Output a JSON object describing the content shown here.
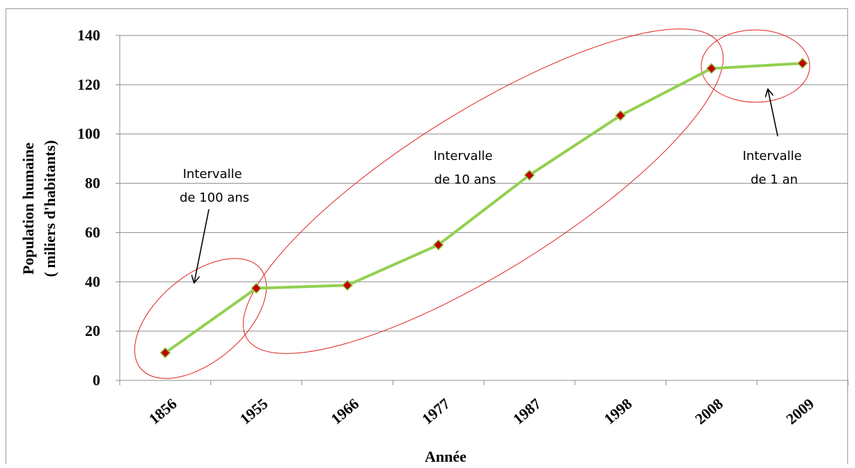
{
  "chart_data": {
    "type": "line",
    "title": "",
    "xlabel": "Année",
    "ylabel": [
      "Population humaine",
      "( miliers d'habitants)"
    ],
    "categories": [
      "1856",
      "1955",
      "1966",
      "1977",
      "1987",
      "1998",
      "2008",
      "2009"
    ],
    "series": [
      {
        "values": [
          11.2,
          37.4,
          38.6,
          55.0,
          83.3,
          107.5,
          126.6,
          128.7
        ]
      }
    ],
    "ylim": [
      0,
      140
    ],
    "yticks": [
      0,
      20,
      40,
      60,
      80,
      100,
      120,
      140
    ],
    "grid": true,
    "line_color": "#92d050",
    "marker_color": "#c00000",
    "annotation_color": "#e02020",
    "annotations": [
      {
        "lines": [
          "Intervalle",
          "de 100 ans"
        ]
      },
      {
        "lines": [
          "Intervalle",
          "de 10 ans"
        ]
      },
      {
        "lines": [
          "Intervalle",
          "de 1 an"
        ]
      }
    ]
  }
}
